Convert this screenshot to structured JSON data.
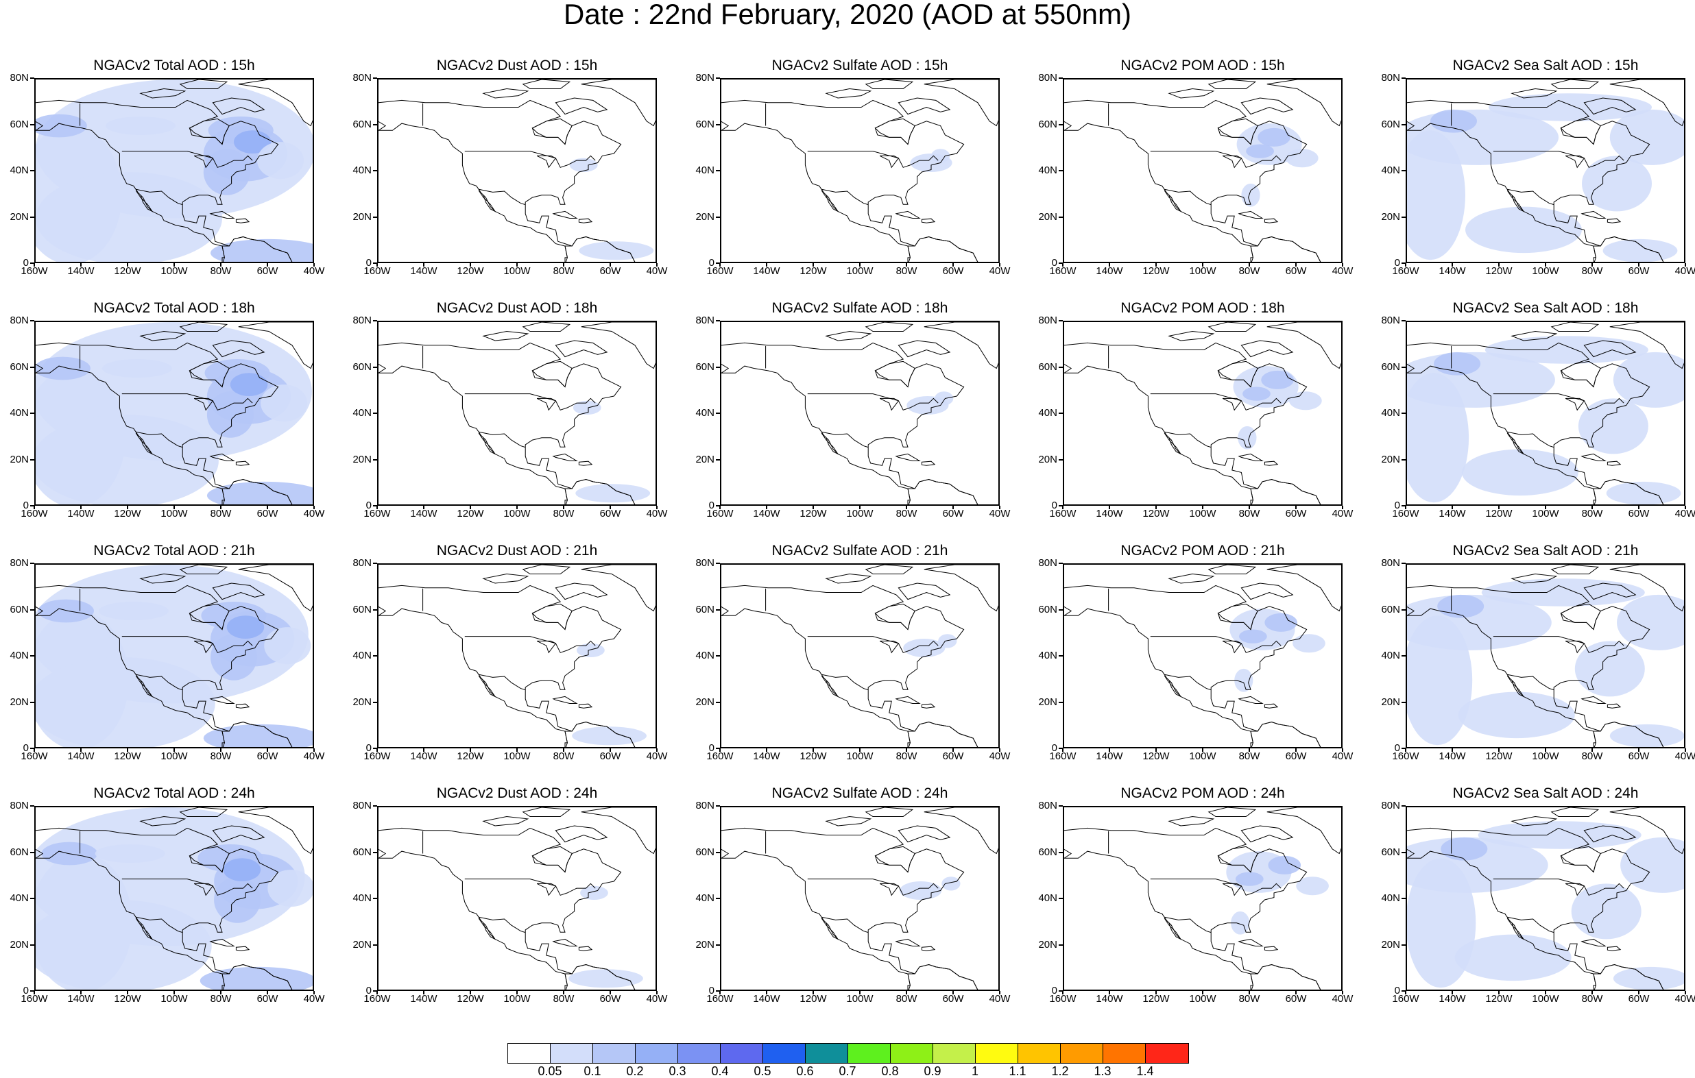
{
  "title": "Date : 22nd February, 2020 (AOD at 550nm)",
  "axes": {
    "lat_labels": [
      "80N",
      "60N",
      "40N",
      "20N",
      "0"
    ],
    "lon_labels": [
      "160W",
      "140W",
      "120W",
      "100W",
      "80W",
      "60W",
      "40W"
    ]
  },
  "panels": [
    {
      "title": "NGACv2 Total AOD : 15h",
      "species": "total",
      "hour": "15h"
    },
    {
      "title": "NGACv2 Dust AOD : 15h",
      "species": "dust",
      "hour": "15h"
    },
    {
      "title": "NGACv2 Sulfate AOD : 15h",
      "species": "sulfate",
      "hour": "15h"
    },
    {
      "title": "NGACv2 POM AOD : 15h",
      "species": "pom",
      "hour": "15h"
    },
    {
      "title": "NGACv2 Sea Salt AOD : 15h",
      "species": "seasalt",
      "hour": "15h"
    },
    {
      "title": "NGACv2 Total AOD : 18h",
      "species": "total",
      "hour": "18h"
    },
    {
      "title": "NGACv2 Dust AOD : 18h",
      "species": "dust",
      "hour": "18h"
    },
    {
      "title": "NGACv2 Sulfate AOD : 18h",
      "species": "sulfate",
      "hour": "18h"
    },
    {
      "title": "NGACv2 POM AOD : 18h",
      "species": "pom",
      "hour": "18h"
    },
    {
      "title": "NGACv2 Sea Salt AOD : 18h",
      "species": "seasalt",
      "hour": "18h"
    },
    {
      "title": "NGACv2 Total AOD : 21h",
      "species": "total",
      "hour": "21h"
    },
    {
      "title": "NGACv2 Dust AOD : 21h",
      "species": "dust",
      "hour": "21h"
    },
    {
      "title": "NGACv2 Sulfate AOD : 21h",
      "species": "sulfate",
      "hour": "21h"
    },
    {
      "title": "NGACv2 POM AOD : 21h",
      "species": "pom",
      "hour": "21h"
    },
    {
      "title": "NGACv2 Sea Salt AOD : 21h",
      "species": "seasalt",
      "hour": "21h"
    },
    {
      "title": "NGACv2 Total AOD : 24h",
      "species": "total",
      "hour": "24h"
    },
    {
      "title": "NGACv2 Dust AOD : 24h",
      "species": "dust",
      "hour": "24h"
    },
    {
      "title": "NGACv2 Sulfate AOD : 24h",
      "species": "sulfate",
      "hour": "24h"
    },
    {
      "title": "NGACv2 POM AOD : 24h",
      "species": "pom",
      "hour": "24h"
    },
    {
      "title": "NGACv2 Sea Salt  AOD : 24h",
      "species": "seasalt",
      "hour": "24h"
    }
  ],
  "colorbar": {
    "colors": [
      "#ffffff",
      "#d3defa",
      "#b5c7f7",
      "#95b0f6",
      "#7b92f3",
      "#5e69ef",
      "#1f60f0",
      "#0f8f9a",
      "#5ef01e",
      "#8ef017",
      "#c4f04a",
      "#fffb10",
      "#ffc400",
      "#ff9b00",
      "#ff7400",
      "#ff2618"
    ],
    "labels": [
      "0.05",
      "0.1",
      "0.2",
      "0.3",
      "0.4",
      "0.5",
      "0.6",
      "0.7",
      "0.8",
      "0.9",
      "1",
      "1.1",
      "1.2",
      "1.3",
      "1.4"
    ]
  }
}
